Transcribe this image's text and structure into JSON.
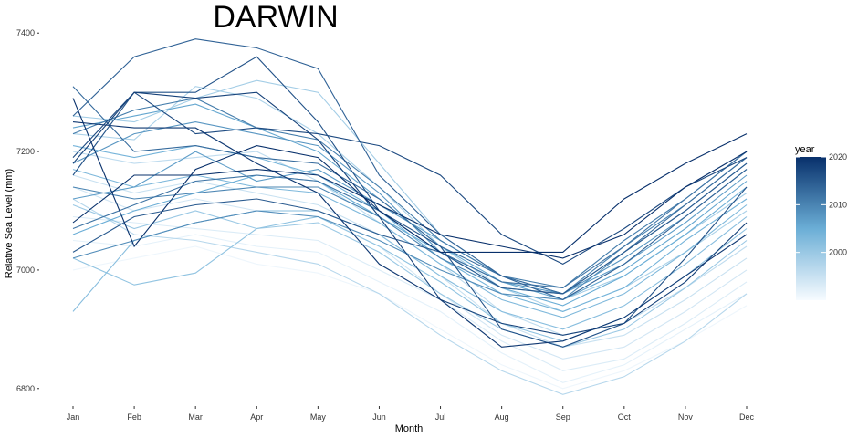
{
  "chart_data": {
    "type": "line",
    "title": "DARWIN",
    "xlabel": "Month",
    "ylabel": "Relative Sea Level (mm)",
    "categories": [
      "Jan",
      "Feb",
      "Mar",
      "Apr",
      "May",
      "Jun",
      "Jul",
      "Aug",
      "Sep",
      "Oct",
      "Nov",
      "Dec"
    ],
    "yticks": [
      6800,
      7000,
      7200,
      7400
    ],
    "ylim": [
      6775,
      7425
    ],
    "grid": false,
    "legend": {
      "title": "year",
      "placement": "right",
      "type": "colorbar",
      "range": [
        1990,
        2020
      ],
      "ticks": [
        2000,
        2010,
        2020
      ],
      "color_low": "#f7fbff",
      "color_high": "#08306b"
    },
    "series": [
      {
        "year": 1991,
        "values": [
          7000,
          7020,
          7040,
          7010,
          6995,
          6960,
          6900,
          6840,
          6800,
          6830,
          6880,
          6940
        ]
      },
      {
        "year": 1992,
        "values": [
          7050,
          7040,
          7060,
          7040,
          7030,
          6980,
          6930,
          6860,
          6810,
          6840,
          6900,
          6960
        ]
      },
      {
        "year": 1993,
        "values": [
          7090,
          7080,
          7070,
          7060,
          7050,
          7000,
          6950,
          6880,
          6830,
          6850,
          6910,
          6980
        ]
      },
      {
        "year": 1994,
        "values": [
          7140,
          7100,
          7120,
          7100,
          7090,
          7040,
          6960,
          6890,
          6850,
          6870,
          6930,
          7000
        ]
      },
      {
        "year": 1995,
        "values": [
          7160,
          7130,
          7150,
          7130,
          7110,
          7060,
          6990,
          6910,
          6870,
          6890,
          6950,
          7020
        ]
      },
      {
        "year": 1996,
        "values": [
          7200,
          7180,
          7190,
          7200,
          7150,
          7080,
          7010,
          6930,
          6890,
          6910,
          6970,
          7040
        ]
      },
      {
        "year": 1997,
        "values": [
          7120,
          7060,
          7050,
          7030,
          7010,
          6960,
          6890,
          6830,
          6790,
          6820,
          6880,
          6960
        ]
      },
      {
        "year": 1998,
        "values": [
          7230,
          7220,
          7310,
          7290,
          7230,
          7140,
          7040,
          6970,
          6930,
          6970,
          7030,
          7100
        ]
      },
      {
        "year": 1999,
        "values": [
          7260,
          7250,
          7290,
          7320,
          7300,
          7180,
          7060,
          6990,
          6950,
          6990,
          7060,
          7130
        ]
      },
      {
        "year": 2000,
        "values": [
          7110,
          7070,
          7100,
          7070,
          7080,
          7030,
          6960,
          6900,
          6870,
          6900,
          6970,
          7050
        ]
      },
      {
        "year": 2001,
        "values": [
          7020,
          6975,
          6995,
          7070,
          7090,
          7040,
          6980,
          6910,
          6880,
          6920,
          6990,
          7070
        ]
      },
      {
        "year": 2002,
        "values": [
          6930,
          7050,
          7080,
          7100,
          7100,
          7060,
          6990,
          6930,
          6900,
          6940,
          7010,
          7090
        ]
      },
      {
        "year": 2003,
        "values": [
          7170,
          7140,
          7160,
          7140,
          7130,
          7080,
          7010,
          6950,
          6920,
          6960,
          7030,
          7110
        ]
      },
      {
        "year": 2004,
        "values": [
          7210,
          7190,
          7210,
          7190,
          7160,
          7100,
          7020,
          6960,
          6930,
          6970,
          7050,
          7120
        ]
      },
      {
        "year": 2005,
        "values": [
          7060,
          7100,
          7130,
          7160,
          7150,
          7090,
          7030,
          6970,
          6940,
          6990,
          7060,
          7140
        ]
      },
      {
        "year": 2006,
        "values": [
          7240,
          7260,
          7280,
          7240,
          7200,
          7120,
          7040,
          6980,
          6950,
          7000,
          7070,
          7150
        ]
      },
      {
        "year": 2007,
        "values": [
          7120,
          7140,
          7200,
          7150,
          7170,
          7110,
          7050,
          6990,
          6960,
          7010,
          7080,
          7160
        ]
      },
      {
        "year": 2008,
        "values": [
          7180,
          7230,
          7250,
          7230,
          7210,
          7130,
          7030,
          6980,
          6960,
          7020,
          7090,
          7170
        ]
      },
      {
        "year": 2009,
        "values": [
          7020,
          7050,
          7080,
          7100,
          7090,
          7050,
          7000,
          6960,
          6950,
          7030,
          7100,
          7180
        ]
      },
      {
        "year": 2010,
        "values": [
          7140,
          7120,
          7130,
          7140,
          7140,
          7090,
          7020,
          6970,
          6960,
          7040,
          7110,
          7190
        ]
      },
      {
        "year": 2011,
        "values": [
          7230,
          7270,
          7290,
          7240,
          7220,
          7140,
          7050,
          6990,
          6970,
          7050,
          7120,
          7200
        ]
      },
      {
        "year": 2012,
        "values": [
          7070,
          7110,
          7150,
          7160,
          7150,
          7100,
          7030,
          6980,
          6970,
          7040,
          7120,
          7200
        ]
      },
      {
        "year": 2013,
        "values": [
          7310,
          7200,
          7210,
          7190,
          7180,
          7120,
          7040,
          6990,
          6960,
          7030,
          7110,
          7190
        ]
      },
      {
        "year": 2014,
        "values": [
          7260,
          7360,
          7390,
          7375,
          7340,
          7160,
          7060,
          6990,
          6950,
          7010,
          7090,
          7170
        ]
      },
      {
        "year": 2015,
        "values": [
          7030,
          7090,
          7110,
          7120,
          7100,
          7060,
          7030,
          6970,
          6960,
          7030,
          7100,
          7180
        ]
      },
      {
        "year": 2016,
        "values": [
          7160,
          7300,
          7300,
          7360,
          7250,
          7100,
          7040,
          6900,
          6870,
          6910,
          7020,
          7140
        ]
      },
      {
        "year": 2017,
        "values": [
          7190,
          7300,
          7230,
          7240,
          7230,
          7210,
          7160,
          7060,
          7010,
          7070,
          7140,
          7190
        ]
      },
      {
        "year": 2018,
        "values": [
          7180,
          7300,
          7290,
          7300,
          7220,
          7090,
          6950,
          6910,
          6890,
          6910,
          6980,
          7080
        ]
      },
      {
        "year": 2019,
        "values": [
          7250,
          7240,
          7240,
          7180,
          7130,
          7010,
          6950,
          6870,
          6880,
          6920,
          6990,
          7060
        ]
      },
      {
        "year": 2020,
        "values": [
          7290,
          7040,
          7170,
          7210,
          7190,
          7100,
          7030,
          7030,
          7030,
          7120,
          7180,
          7230
        ]
      },
      {
        "year": 2021,
        "values": [
          7080,
          7160,
          7160,
          7170,
          7160,
          7110,
          7060,
          7040,
          7020,
          7060,
          7140,
          7200
        ]
      }
    ]
  }
}
